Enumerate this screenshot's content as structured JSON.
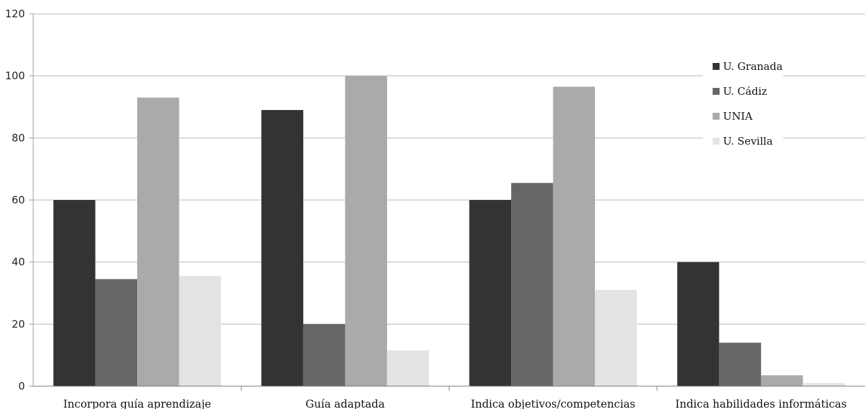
{
  "chart_data": {
    "type": "bar",
    "categories": [
      "Incorpora guía aprendizaje",
      "Guía adaptada",
      "Indica objetivos/competencias",
      "Indica habilidades informáticas"
    ],
    "series": [
      {
        "name": "U. Granada",
        "color": "#333333",
        "values": [
          60,
          89,
          60,
          40
        ]
      },
      {
        "name": "U. Cádiz",
        "color": "#666666",
        "values": [
          34.5,
          20,
          65.5,
          14
        ]
      },
      {
        "name": "UNIA",
        "color": "#aaaaaa",
        "values": [
          93,
          100,
          96.5,
          3.5
        ]
      },
      {
        "name": "U. Sevilla",
        "color": "#e3e3e3",
        "values": [
          35.5,
          11.5,
          31,
          1
        ]
      }
    ],
    "title": "",
    "xlabel": "",
    "ylabel": "",
    "ylim": [
      0,
      120
    ],
    "yticks": [
      0,
      20,
      40,
      60,
      80,
      100,
      120
    ],
    "grid": true,
    "legend": "right"
  }
}
